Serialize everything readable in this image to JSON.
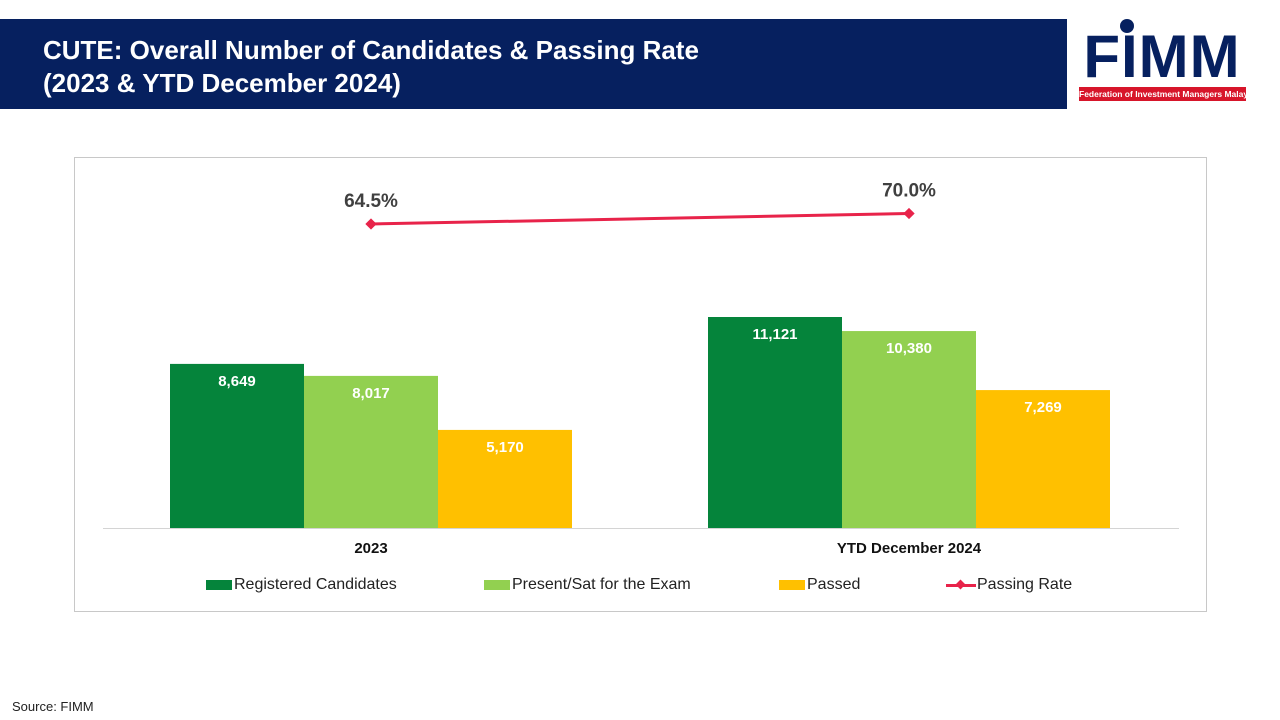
{
  "header": {
    "title_line1": "CUTE: Overall Number of Candidates & Passing Rate",
    "title_line2": "(2023 & YTD December 2024)"
  },
  "logo": {
    "word": "FIMM",
    "tagline": "Federation of Investment Managers Malaysia"
  },
  "chart_data": {
    "type": "bar",
    "categories": [
      "2023",
      "YTD December 2024"
    ],
    "series": [
      {
        "name": "Registered Candidates",
        "type": "bar",
        "values": [
          8649,
          11121
        ],
        "labels": [
          "8,649",
          "11,121"
        ],
        "color": "#05843b"
      },
      {
        "name": "Present/Sat for the Exam",
        "type": "bar",
        "values": [
          8017,
          10380
        ],
        "labels": [
          "8,017",
          "10,380"
        ],
        "color": "#92d050"
      },
      {
        "name": "Passed",
        "type": "bar",
        "values": [
          5170,
          7269
        ],
        "labels": [
          "5,170",
          "7,269"
        ],
        "color": "#ffc000"
      },
      {
        "name": "Passing Rate",
        "type": "line",
        "values": [
          64.5,
          70.0
        ],
        "labels": [
          "64.5%",
          "70.0%"
        ],
        "color": "#e8234a"
      }
    ],
    "legend_position": "bottom",
    "grid": false
  },
  "source": "Source: FIMM"
}
